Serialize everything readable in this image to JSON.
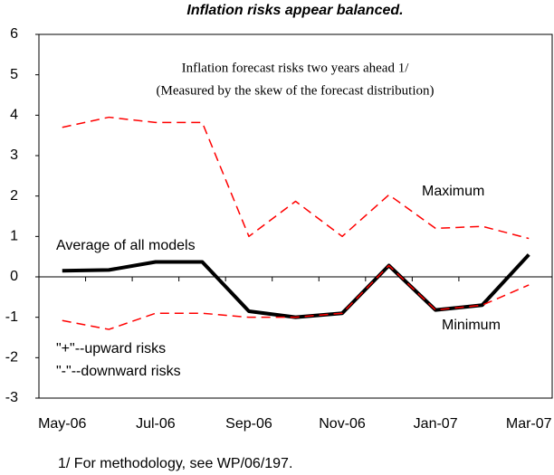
{
  "chart_data": {
    "type": "line",
    "title": "Inflation risks appear balanced.",
    "annotations": [
      "Inflation forecast risks two years ahead 1/",
      "(Measured by the skew of the forecast distribution)",
      "\"+\"--upward risks",
      "\"-\"--downward risks"
    ],
    "footnote": "1/ For methodology, see WP/06/197.",
    "categories": [
      "May-06",
      null,
      "Jul-06",
      null,
      "Sep-06",
      null,
      "Nov-06",
      null,
      "Jan-07",
      null,
      "Mar-07"
    ],
    "series": [
      {
        "name": "Maximum",
        "color": "#ff0000",
        "dashed": true,
        "width": 1.5,
        "values": [
          3.7,
          3.95,
          3.82,
          3.82,
          1.0,
          1.87,
          1.0,
          2.03,
          1.2,
          1.25,
          0.95
        ]
      },
      {
        "name": "Average of all models",
        "color": "#000000",
        "dashed": false,
        "width": 4,
        "values": [
          0.15,
          0.17,
          0.37,
          0.37,
          -0.85,
          -1.0,
          -0.9,
          0.28,
          -0.82,
          -0.7,
          0.55
        ]
      },
      {
        "name": "Minimum",
        "color": "#ff0000",
        "dashed": true,
        "width": 1.5,
        "values": [
          -1.08,
          -1.3,
          -0.9,
          -0.9,
          -1.0,
          -1.0,
          -0.9,
          0.28,
          -0.82,
          -0.7,
          -0.2
        ]
      }
    ],
    "ylim": [
      -3,
      6
    ],
    "yticks": [
      -3,
      -2,
      -1,
      0,
      1,
      2,
      3,
      4,
      5,
      6
    ]
  }
}
